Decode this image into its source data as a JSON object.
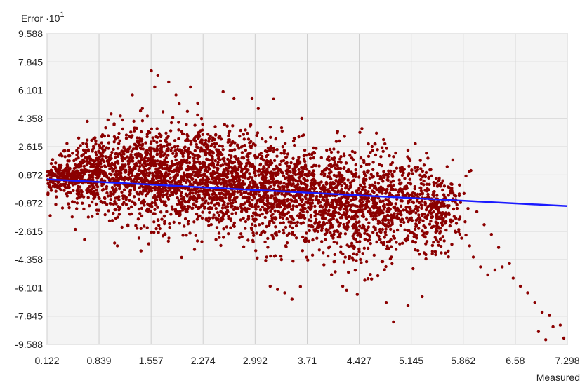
{
  "chart_data": {
    "type": "scatter",
    "title": "",
    "ylabel": "Error",
    "ylabel_exponent": "·10",
    "ylabel_power": "1",
    "xlabel": "Measured",
    "xlim": [
      0.122,
      7.298
    ],
    "ylim": [
      -9.588,
      9.588
    ],
    "x_ticks": [
      "0.122",
      "0.839",
      "1.557",
      "2.274",
      "2.992",
      "3.71",
      "4.427",
      "5.145",
      "5.862",
      "6.58",
      "7.298"
    ],
    "y_ticks": [
      "9.588",
      "7.845",
      "6.101",
      "4.358",
      "2.615",
      "0.872",
      "-0.872",
      "-2.615",
      "-4.358",
      "-6.101",
      "-7.845",
      "-9.588"
    ],
    "grid": true,
    "colors": {
      "points": "#8b0000",
      "trend": "#1a1aff",
      "grid": "#cfcfcf",
      "plot_bg": "#f4f4f4"
    },
    "trend_line": {
      "x": [
        0.122,
        7.298
      ],
      "y": [
        0.6,
        -1.05
      ]
    },
    "clusters": [
      {
        "cx": 0.3,
        "cy": 0.7,
        "sx": 0.16,
        "sy": 0.45,
        "n": 200
      },
      {
        "cx": 0.8,
        "cy": 0.9,
        "sx": 0.28,
        "sy": 1.0,
        "n": 420
      },
      {
        "cx": 1.6,
        "cy": 0.9,
        "sx": 0.4,
        "sy": 1.5,
        "n": 800
      },
      {
        "cx": 2.4,
        "cy": 0.6,
        "sx": 0.4,
        "sy": 1.6,
        "n": 700
      },
      {
        "cx": 3.1,
        "cy": 0.2,
        "sx": 0.4,
        "sy": 1.5,
        "n": 550
      },
      {
        "cx": 3.8,
        "cy": -0.6,
        "sx": 0.4,
        "sy": 1.5,
        "n": 520
      },
      {
        "cx": 4.4,
        "cy": -1.2,
        "sx": 0.35,
        "sy": 1.8,
        "n": 520
      },
      {
        "cx": 5.1,
        "cy": -0.8,
        "sx": 0.35,
        "sy": 1.4,
        "n": 380
      },
      {
        "cx": 5.5,
        "cy": -1.6,
        "sx": 0.15,
        "sy": 1.0,
        "n": 160
      }
    ],
    "outliers": [
      {
        "x": 1.56,
        "y": 7.3
      },
      {
        "x": 1.65,
        "y": 7.0
      },
      {
        "x": 1.8,
        "y": 6.6
      },
      {
        "x": 1.9,
        "y": 5.8
      },
      {
        "x": 1.3,
        "y": 5.8
      },
      {
        "x": 2.2,
        "y": 5.3
      },
      {
        "x": 2.55,
        "y": 6.0
      },
      {
        "x": 2.7,
        "y": 5.6
      },
      {
        "x": 2.95,
        "y": 5.6
      },
      {
        "x": 2.1,
        "y": 6.3
      },
      {
        "x": 5.1,
        "y": 2.4
      },
      {
        "x": 5.2,
        "y": 2.8
      },
      {
        "x": 4.9,
        "y": 2.0
      },
      {
        "x": 3.0,
        "y": -3.8
      },
      {
        "x": 3.15,
        "y": -4.2
      },
      {
        "x": 3.2,
        "y": -6.0
      },
      {
        "x": 3.3,
        "y": -6.2
      },
      {
        "x": 3.4,
        "y": -6.4
      },
      {
        "x": 3.5,
        "y": -6.8
      },
      {
        "x": 4.2,
        "y": -6.0
      },
      {
        "x": 4.4,
        "y": -6.5
      },
      {
        "x": 4.8,
        "y": -7.0
      },
      {
        "x": 4.9,
        "y": -8.2
      },
      {
        "x": 5.1,
        "y": -7.2
      },
      {
        "x": 5.6,
        "y": -3.2
      },
      {
        "x": 5.8,
        "y": -2.5
      },
      {
        "x": 5.95,
        "y": -3.5
      },
      {
        "x": 6.0,
        "y": -4.2
      },
      {
        "x": 6.1,
        "y": -4.8
      },
      {
        "x": 6.2,
        "y": -5.3
      },
      {
        "x": 6.3,
        "y": -5.0
      },
      {
        "x": 6.4,
        "y": -4.8
      },
      {
        "x": 6.5,
        "y": -4.6
      },
      {
        "x": 6.55,
        "y": -5.5
      },
      {
        "x": 6.65,
        "y": -6.0
      },
      {
        "x": 6.75,
        "y": -6.4
      },
      {
        "x": 6.85,
        "y": -7.0
      },
      {
        "x": 6.95,
        "y": -7.6
      },
      {
        "x": 7.05,
        "y": -7.8
      },
      {
        "x": 7.1,
        "y": -8.5
      },
      {
        "x": 7.2,
        "y": -8.4
      },
      {
        "x": 7.25,
        "y": -9.2
      },
      {
        "x": 7.0,
        "y": -9.3
      },
      {
        "x": 6.9,
        "y": -8.8
      },
      {
        "x": 5.9,
        "y": 0.8
      },
      {
        "x": 5.7,
        "y": 0.3
      },
      {
        "x": 6.05,
        "y": -1.4
      },
      {
        "x": 6.15,
        "y": -2.2
      },
      {
        "x": 6.25,
        "y": -2.8
      },
      {
        "x": 6.35,
        "y": -3.6
      }
    ]
  }
}
